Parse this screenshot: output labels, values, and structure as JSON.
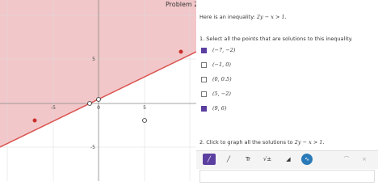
{
  "title": "Problem 2",
  "graph": {
    "y_labels": [
      "5",
      "-5"
    ],
    "x_labels": [
      "-5",
      "0",
      "5"
    ]
  },
  "question": {
    "intro": "Here is an inequality:",
    "inequality": "2y − x > 1.",
    "part1": "1. Select all the points that are solutions to this inequality.",
    "options": [
      {
        "label": "(−7, −2)",
        "checked": true
      },
      {
        "label": "(−1, 0)",
        "checked": false
      },
      {
        "label": "(0, 0.5)",
        "checked": false
      },
      {
        "label": "(5, −2)",
        "checked": false
      },
      {
        "label": "(9, 6)",
        "checked": true
      }
    ],
    "part2": "2. Click to graph all the solutions to",
    "part2_math": "2y − x > 1."
  },
  "toolbar": {
    "buttons": [
      "Tr",
      "√±"
    ]
  }
}
